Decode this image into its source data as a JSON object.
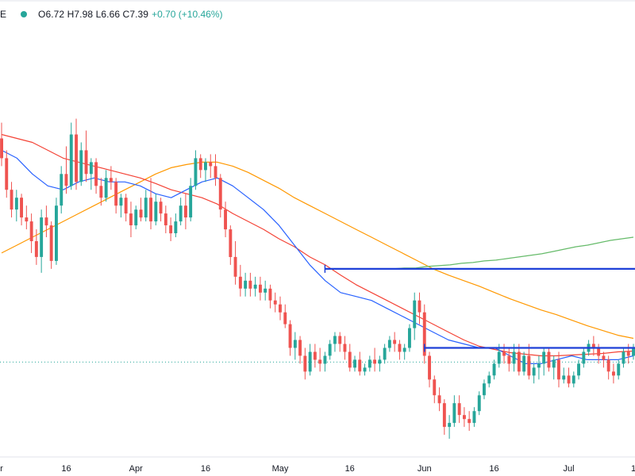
{
  "header": {
    "symbol_fragment": "E",
    "status_color": "#26a69a",
    "ohlc": "O6.72 H7.98 L6.66 C7.39",
    "change": "+0.70 (+10.46%)"
  },
  "chart_data": {
    "type": "candlestick",
    "x_tick_labels": [
      "r",
      "16",
      "Apr",
      "16",
      "May",
      "16",
      "Jun",
      "16",
      "Jul",
      "1"
    ],
    "colors": {
      "up": "#26a69a",
      "down": "#ef5350",
      "ma_fast": "#2962ff",
      "ma_mid": "#f44336",
      "ma_slow": "#ff9800",
      "ma_long": "#66bb6a",
      "levels": "#1e40d8"
    },
    "y_range": [
      5.6,
      10.9
    ],
    "candles": [
      [
        9.55,
        9.75,
        9.2,
        9.3
      ],
      [
        9.3,
        9.4,
        8.8,
        8.9
      ],
      [
        8.9,
        9.0,
        8.55,
        8.65
      ],
      [
        8.65,
        8.9,
        8.5,
        8.8
      ],
      [
        8.8,
        8.85,
        8.45,
        8.55
      ],
      [
        8.55,
        8.7,
        8.4,
        8.5
      ],
      [
        8.5,
        8.6,
        8.1,
        8.25
      ],
      [
        8.25,
        8.4,
        7.95,
        8.05
      ],
      [
        8.05,
        8.65,
        7.85,
        8.55
      ],
      [
        8.55,
        8.7,
        8.3,
        8.45
      ],
      [
        8.45,
        8.5,
        7.9,
        8.0
      ],
      [
        8.0,
        8.8,
        7.95,
        8.7
      ],
      [
        8.7,
        9.2,
        8.6,
        9.1
      ],
      [
        9.1,
        9.45,
        8.85,
        8.95
      ],
      [
        8.95,
        9.75,
        8.9,
        9.6
      ],
      [
        9.6,
        9.8,
        8.9,
        9.0
      ],
      [
        9.0,
        9.5,
        8.95,
        9.4
      ],
      [
        9.4,
        9.65,
        9.0,
        9.1
      ],
      [
        9.1,
        9.3,
        8.9,
        9.25
      ],
      [
        9.25,
        9.3,
        8.85,
        8.95
      ],
      [
        8.95,
        9.05,
        8.7,
        8.8
      ],
      [
        8.8,
        9.15,
        8.75,
        9.05
      ],
      [
        9.05,
        9.2,
        8.9,
        9.0
      ],
      [
        9.0,
        9.05,
        8.6,
        8.7
      ],
      [
        8.7,
        8.85,
        8.55,
        8.8
      ],
      [
        8.8,
        8.85,
        8.5,
        8.6
      ],
      [
        8.6,
        8.75,
        8.3,
        8.45
      ],
      [
        8.45,
        8.7,
        8.4,
        8.65
      ],
      [
        8.65,
        8.8,
        8.5,
        8.55
      ],
      [
        8.55,
        8.9,
        8.5,
        8.8
      ],
      [
        8.8,
        9.05,
        8.4,
        8.5
      ],
      [
        8.5,
        8.85,
        8.45,
        8.75
      ],
      [
        8.75,
        8.8,
        8.5,
        8.6
      ],
      [
        8.6,
        8.7,
        8.35,
        8.45
      ],
      [
        8.45,
        8.55,
        8.25,
        8.35
      ],
      [
        8.35,
        8.6,
        8.3,
        8.5
      ],
      [
        8.5,
        8.8,
        8.45,
        8.7
      ],
      [
        8.7,
        8.85,
        8.4,
        8.55
      ],
      [
        8.55,
        9.05,
        8.5,
        8.95
      ],
      [
        8.95,
        9.4,
        8.9,
        9.3
      ],
      [
        9.3,
        9.35,
        9.05,
        9.15
      ],
      [
        9.15,
        9.3,
        9.0,
        9.25
      ],
      [
        9.25,
        9.35,
        9.05,
        9.2
      ],
      [
        9.2,
        9.35,
        8.95,
        9.05
      ],
      [
        9.05,
        9.1,
        8.55,
        8.65
      ],
      [
        8.65,
        8.75,
        8.3,
        8.4
      ],
      [
        8.4,
        8.45,
        7.95,
        8.05
      ],
      [
        8.05,
        8.25,
        7.7,
        7.8
      ],
      [
        7.8,
        7.95,
        7.55,
        7.65
      ],
      [
        7.65,
        7.85,
        7.55,
        7.75
      ],
      [
        7.75,
        7.85,
        7.55,
        7.65
      ],
      [
        7.65,
        7.8,
        7.55,
        7.7
      ],
      [
        7.7,
        7.8,
        7.5,
        7.6
      ],
      [
        7.6,
        7.75,
        7.5,
        7.65
      ],
      [
        7.65,
        7.7,
        7.4,
        7.5
      ],
      [
        7.5,
        7.6,
        7.35,
        7.45
      ],
      [
        7.45,
        7.55,
        7.25,
        7.35
      ],
      [
        7.35,
        7.45,
        7.15,
        7.2
      ],
      [
        7.2,
        7.25,
        6.8,
        6.9
      ],
      [
        6.9,
        7.1,
        6.75,
        7.0
      ],
      [
        7.0,
        7.05,
        6.7,
        6.8
      ],
      [
        6.8,
        6.9,
        6.5,
        6.6
      ],
      [
        6.6,
        6.95,
        6.55,
        6.85
      ],
      [
        6.85,
        6.95,
        6.65,
        6.75
      ],
      [
        6.75,
        6.9,
        6.6,
        6.7
      ],
      [
        6.7,
        6.85,
        6.6,
        6.8
      ],
      [
        6.8,
        7.0,
        6.75,
        6.95
      ],
      [
        6.95,
        7.1,
        6.85,
        7.05
      ],
      [
        7.05,
        7.1,
        6.85,
        6.95
      ],
      [
        6.95,
        7.05,
        6.75,
        6.85
      ],
      [
        6.85,
        6.95,
        6.6,
        6.65
      ],
      [
        6.65,
        6.8,
        6.6,
        6.75
      ],
      [
        6.75,
        6.85,
        6.55,
        6.6
      ],
      [
        6.6,
        6.7,
        6.55,
        6.65
      ],
      [
        6.65,
        6.8,
        6.6,
        6.75
      ],
      [
        6.75,
        6.9,
        6.6,
        6.7
      ],
      [
        6.7,
        6.8,
        6.6,
        6.75
      ],
      [
        6.75,
        6.95,
        6.7,
        6.9
      ],
      [
        6.9,
        7.05,
        6.85,
        7.0
      ],
      [
        7.0,
        7.1,
        6.85,
        6.95
      ],
      [
        6.95,
        7.0,
        6.75,
        6.85
      ],
      [
        6.85,
        6.95,
        6.75,
        6.9
      ],
      [
        6.9,
        7.2,
        6.85,
        7.15
      ],
      [
        7.15,
        7.6,
        7.0,
        7.5
      ],
      [
        7.5,
        7.6,
        7.2,
        7.35
      ],
      [
        7.35,
        7.45,
        6.7,
        6.8
      ],
      [
        6.8,
        6.85,
        6.4,
        6.5
      ],
      [
        6.5,
        6.55,
        6.2,
        6.3
      ],
      [
        6.3,
        6.4,
        6.1,
        6.2
      ],
      [
        6.2,
        6.25,
        5.8,
        5.9
      ],
      [
        5.9,
        6.05,
        5.75,
        5.95
      ],
      [
        5.95,
        6.3,
        5.9,
        6.2
      ],
      [
        6.2,
        6.3,
        5.95,
        6.05
      ],
      [
        6.05,
        6.15,
        5.9,
        6.0
      ],
      [
        6.0,
        6.1,
        5.85,
        5.95
      ],
      [
        5.95,
        6.15,
        5.9,
        6.1
      ],
      [
        6.1,
        6.35,
        6.05,
        6.3
      ],
      [
        6.3,
        6.5,
        6.25,
        6.45
      ],
      [
        6.45,
        6.6,
        6.4,
        6.55
      ],
      [
        6.55,
        6.75,
        6.5,
        6.7
      ],
      [
        6.7,
        6.95,
        6.65,
        6.85
      ],
      [
        6.85,
        6.95,
        6.7,
        6.8
      ],
      [
        6.8,
        6.9,
        6.6,
        6.7
      ],
      [
        6.7,
        6.95,
        6.6,
        6.85
      ],
      [
        6.85,
        6.95,
        6.55,
        6.6
      ],
      [
        6.6,
        6.85,
        6.55,
        6.8
      ],
      [
        6.8,
        6.95,
        6.5,
        6.55
      ],
      [
        6.55,
        6.7,
        6.45,
        6.65
      ],
      [
        6.65,
        6.8,
        6.5,
        6.7
      ],
      [
        6.7,
        6.9,
        6.55,
        6.85
      ],
      [
        6.85,
        6.9,
        6.6,
        6.65
      ],
      [
        6.65,
        6.8,
        6.5,
        6.75
      ],
      [
        6.75,
        6.85,
        6.4,
        6.5
      ],
      [
        6.5,
        6.65,
        6.45,
        6.55
      ],
      [
        6.55,
        6.65,
        6.4,
        6.45
      ],
      [
        6.45,
        6.6,
        6.4,
        6.55
      ],
      [
        6.55,
        6.75,
        6.5,
        6.7
      ],
      [
        6.7,
        6.9,
        6.65,
        6.85
      ],
      [
        6.85,
        7.0,
        6.8,
        6.95
      ],
      [
        6.95,
        7.05,
        6.8,
        6.9
      ],
      [
        6.9,
        6.95,
        6.7,
        6.8
      ],
      [
        6.8,
        6.85,
        6.65,
        6.75
      ],
      [
        6.75,
        6.8,
        6.5,
        6.6
      ],
      [
        6.6,
        6.7,
        6.45,
        6.55
      ],
      [
        6.55,
        6.75,
        6.5,
        6.7
      ],
      [
        6.7,
        6.9,
        6.65,
        6.85
      ],
      [
        6.85,
        6.95,
        6.7,
        6.8
      ],
      [
        6.8,
        6.95,
        6.75,
        6.9
      ]
    ],
    "moving_averages": {
      "ma_fast": [
        9.4,
        9.3,
        9.1,
        8.95,
        8.9,
        9.0,
        9.05,
        9.0,
        9.0,
        8.95,
        8.85,
        8.8,
        8.9,
        9.0,
        9.05,
        8.95,
        8.8,
        8.65,
        8.45,
        8.2,
        7.95,
        7.75,
        7.6,
        7.55,
        7.5,
        7.4,
        7.3,
        7.2,
        7.1,
        7.0,
        6.95,
        6.9,
        6.9,
        6.8,
        6.7,
        6.7,
        6.75,
        6.8,
        6.75,
        6.75,
        6.75,
        6.8
      ],
      "ma_mid": [
        9.6,
        9.55,
        9.5,
        9.4,
        9.3,
        9.25,
        9.2,
        9.15,
        9.1,
        9.05,
        8.98,
        8.9,
        8.85,
        8.8,
        8.72,
        8.6,
        8.5,
        8.4,
        8.28,
        8.18,
        8.05,
        7.95,
        7.82,
        7.7,
        7.6,
        7.5,
        7.4,
        7.3,
        7.2,
        7.1,
        7.0,
        6.92,
        6.88,
        6.84,
        6.82,
        6.8,
        6.8,
        6.81,
        6.82,
        6.83,
        6.85,
        6.86
      ],
      "ma_slow": [
        8.1,
        8.2,
        8.3,
        8.4,
        8.5,
        8.6,
        8.7,
        8.8,
        8.9,
        9.0,
        9.1,
        9.18,
        9.22,
        9.25,
        9.25,
        9.2,
        9.12,
        9.02,
        8.92,
        8.8,
        8.7,
        8.6,
        8.5,
        8.4,
        8.3,
        8.2,
        8.1,
        8.0,
        7.9,
        7.82,
        7.75,
        7.68,
        7.6,
        7.52,
        7.45,
        7.38,
        7.32,
        7.25,
        7.18,
        7.12,
        7.06,
        7.02
      ]
    },
    "ma_long": [
      7.9,
      7.9,
      7.9,
      7.91,
      7.91,
      7.93,
      7.94,
      7.95,
      7.97,
      7.98,
      8.0,
      8.01,
      8.03,
      8.05,
      8.07,
      8.09,
      8.12,
      8.15,
      8.18,
      8.2,
      8.23,
      8.26,
      8.28,
      8.3
    ],
    "levels": [
      {
        "from": 65,
        "to": 132,
        "price": 7.9
      },
      {
        "from": 85,
        "to": 132,
        "price": 6.9
      },
      {
        "from": 148,
        "to": 160,
        "price": 7.1
      }
    ],
    "last_price": 6.72
  }
}
